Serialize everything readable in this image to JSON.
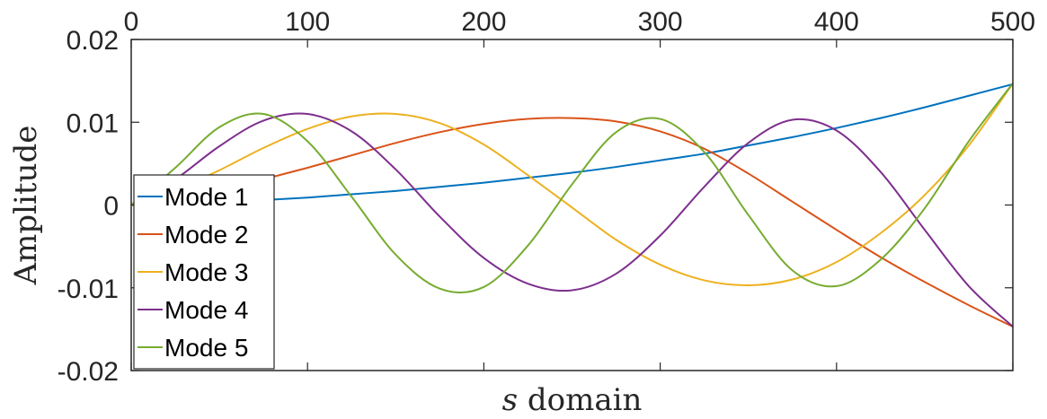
{
  "chart_data": {
    "type": "line",
    "title": "",
    "xlabel_var": "s",
    "xlabel_rest": " domain",
    "ylabel": "Amplitude",
    "xlim": [
      0,
      500
    ],
    "ylim": [
      -0.02,
      0.02
    ],
    "x_axis_location": "top",
    "box": true,
    "grid": false,
    "xticks": [
      0,
      100,
      200,
      300,
      400,
      500
    ],
    "xtick_labels": [
      "0",
      "100",
      "200",
      "300",
      "400",
      "500"
    ],
    "yticks": [
      0.02,
      0.01,
      0,
      -0.01,
      -0.02
    ],
    "ytick_labels": [
      "0.02",
      "0.01",
      "0",
      "-0.01",
      "-0.02"
    ],
    "legend_position": "bottom-left",
    "series": [
      {
        "name": "Mode 1",
        "color": "#0072BD",
        "x": [
          0,
          25,
          50,
          75,
          100,
          125,
          150,
          175,
          200,
          225,
          250,
          275,
          300,
          325,
          350,
          375,
          400,
          425,
          450,
          475,
          500
        ],
        "y": [
          0,
          0.0002,
          0.0004,
          0.0006,
          0.0009,
          0.0013,
          0.0017,
          0.0022,
          0.0027,
          0.0033,
          0.0039,
          0.0046,
          0.0054,
          0.0062,
          0.0072,
          0.0082,
          0.0093,
          0.0105,
          0.0118,
          0.0132,
          0.0146
        ]
      },
      {
        "name": "Mode 2",
        "color": "#D95319",
        "x": [
          0,
          25,
          50,
          75,
          100,
          125,
          150,
          175,
          200,
          225,
          250,
          275,
          300,
          325,
          350,
          375,
          400,
          425,
          450,
          475,
          500
        ],
        "y": [
          0,
          0.0008,
          0.0018,
          0.0031,
          0.0045,
          0.006,
          0.0075,
          0.0088,
          0.0098,
          0.0104,
          0.0105,
          0.0101,
          0.0089,
          0.0068,
          0.0038,
          0.0004,
          -0.003,
          -0.0063,
          -0.0093,
          -0.0121,
          -0.0147
        ]
      },
      {
        "name": "Mode 3",
        "color": "#EDB120",
        "x": [
          0,
          25,
          50,
          75,
          100,
          125,
          150,
          175,
          200,
          225,
          250,
          275,
          300,
          325,
          350,
          375,
          400,
          425,
          450,
          475,
          500
        ],
        "y": [
          0,
          0.0018,
          0.0042,
          0.0069,
          0.0092,
          0.0107,
          0.011,
          0.0099,
          0.0073,
          0.0036,
          -0.0003,
          -0.0042,
          -0.0072,
          -0.0091,
          -0.0097,
          -0.009,
          -0.0069,
          -0.0034,
          0.0012,
          0.0072,
          0.0147
        ]
      },
      {
        "name": "Mode 4",
        "color": "#7E2F8E",
        "x": [
          0,
          25,
          50,
          75,
          100,
          125,
          150,
          175,
          200,
          225,
          250,
          275,
          300,
          325,
          350,
          375,
          400,
          425,
          450,
          475,
          500
        ],
        "y": [
          0,
          0.0031,
          0.0071,
          0.0102,
          0.011,
          0.0089,
          0.0043,
          -0.0014,
          -0.0064,
          -0.0095,
          -0.0103,
          -0.0083,
          -0.0037,
          0.0022,
          0.0075,
          0.0103,
          0.009,
          0.004,
          -0.003,
          -0.0098,
          -0.0147
        ]
      },
      {
        "name": "Mode 5",
        "color": "#77AC30",
        "x": [
          0,
          25,
          50,
          75,
          100,
          125,
          150,
          175,
          200,
          225,
          250,
          275,
          300,
          325,
          350,
          375,
          400,
          425,
          450,
          475,
          500
        ],
        "y": [
          0,
          0.0045,
          0.0094,
          0.011,
          0.0077,
          0.001,
          -0.006,
          -0.0101,
          -0.0099,
          -0.0049,
          0.0025,
          0.0088,
          0.0104,
          0.0064,
          -0.0012,
          -0.0079,
          -0.0098,
          -0.0066,
          -0.0004,
          0.0077,
          0.0147
        ]
      }
    ]
  }
}
